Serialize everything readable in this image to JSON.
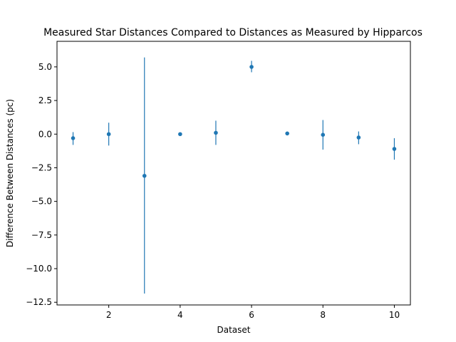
{
  "chart_data": {
    "type": "scatter",
    "title": "Measured Star Distances Compared to Distances as Measured by Hipparcos",
    "xlabel": "Dataset",
    "ylabel": "Difference Between Distances (pc)",
    "xlim": [
      0.55,
      10.45
    ],
    "ylim": [
      -12.7,
      6.9
    ],
    "x_ticks": [
      2,
      4,
      6,
      8,
      10
    ],
    "x_tick_labels": [
      "2",
      "4",
      "6",
      "8",
      "10"
    ],
    "y_ticks": [
      5.0,
      2.5,
      0.0,
      -2.5,
      -5.0,
      -7.5,
      -10.0,
      -12.5
    ],
    "y_tick_labels": [
      "5.0",
      "2.5",
      "0.0",
      "−2.5",
      "−5.0",
      "−7.5",
      "−10.0",
      "−12.5"
    ],
    "grid": false,
    "color": "#1f77b4",
    "series": [
      {
        "x": [
          1,
          2,
          3,
          4,
          5,
          6,
          7,
          8,
          9,
          10
        ],
        "y": [
          -0.3,
          0.0,
          -3.1,
          0.0,
          0.1,
          5.0,
          0.05,
          -0.05,
          -0.25,
          -1.1
        ],
        "yerr_low": [
          -0.8,
          -0.85,
          -11.85,
          0.0,
          -0.8,
          4.6,
          0.05,
          -1.15,
          -0.75,
          -1.9
        ],
        "yerr_high": [
          0.15,
          0.85,
          5.7,
          0.0,
          1.0,
          5.45,
          0.05,
          1.05,
          0.2,
          -0.3
        ]
      }
    ]
  }
}
